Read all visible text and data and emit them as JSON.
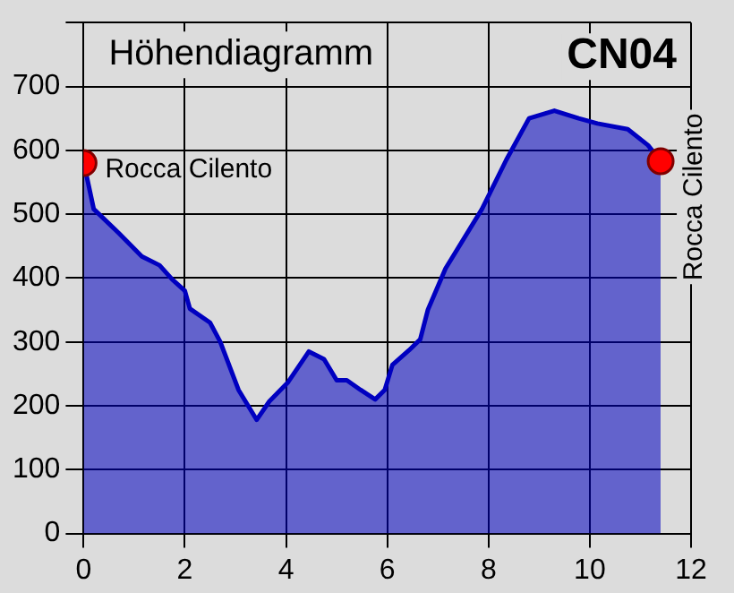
{
  "chart_data": {
    "type": "area",
    "title": "Höhendiagramm",
    "subtitle": "CN04",
    "xlim": [
      0,
      12
    ],
    "xticks": [
      0,
      2,
      4,
      6,
      8,
      10,
      12
    ],
    "ylim": [
      0,
      800
    ],
    "yticks": [
      0,
      100,
      200,
      300,
      400,
      500,
      600,
      700,
      {
        "value": 800,
        "label": null
      }
    ],
    "grid": true,
    "series": [
      {
        "color": "#0000c0",
        "x": [
          0,
          0.07,
          0.2,
          0.7,
          1.15,
          1.5,
          1.75,
          2.0,
          2.1,
          2.5,
          2.7,
          3.06,
          3.42,
          3.67,
          4.03,
          4.45,
          4.75,
          5.0,
          5.2,
          5.47,
          5.76,
          5.95,
          6.1,
          6.43,
          6.65,
          6.8,
          7.15,
          7.87,
          8.35,
          8.8,
          9.3,
          9.78,
          10.15,
          10.75,
          11.15,
          11.4
        ],
        "values": [
          580,
          556,
          508,
          470,
          434,
          420,
          398,
          380,
          352,
          330,
          300,
          225,
          178,
          207,
          236,
          285,
          273,
          240,
          240,
          225,
          210,
          225,
          264,
          287,
          304,
          350,
          415,
          508,
          585,
          650,
          662,
          650,
          642,
          633,
          608,
          583
        ]
      },
      {
        "type": "scatter",
        "color": "#ff0000",
        "x": [
          0,
          11.4
        ],
        "values": [
          580,
          583
        ]
      }
    ],
    "annotations": [
      "Rocca Cilento",
      "Rocca Cilento"
    ]
  }
}
